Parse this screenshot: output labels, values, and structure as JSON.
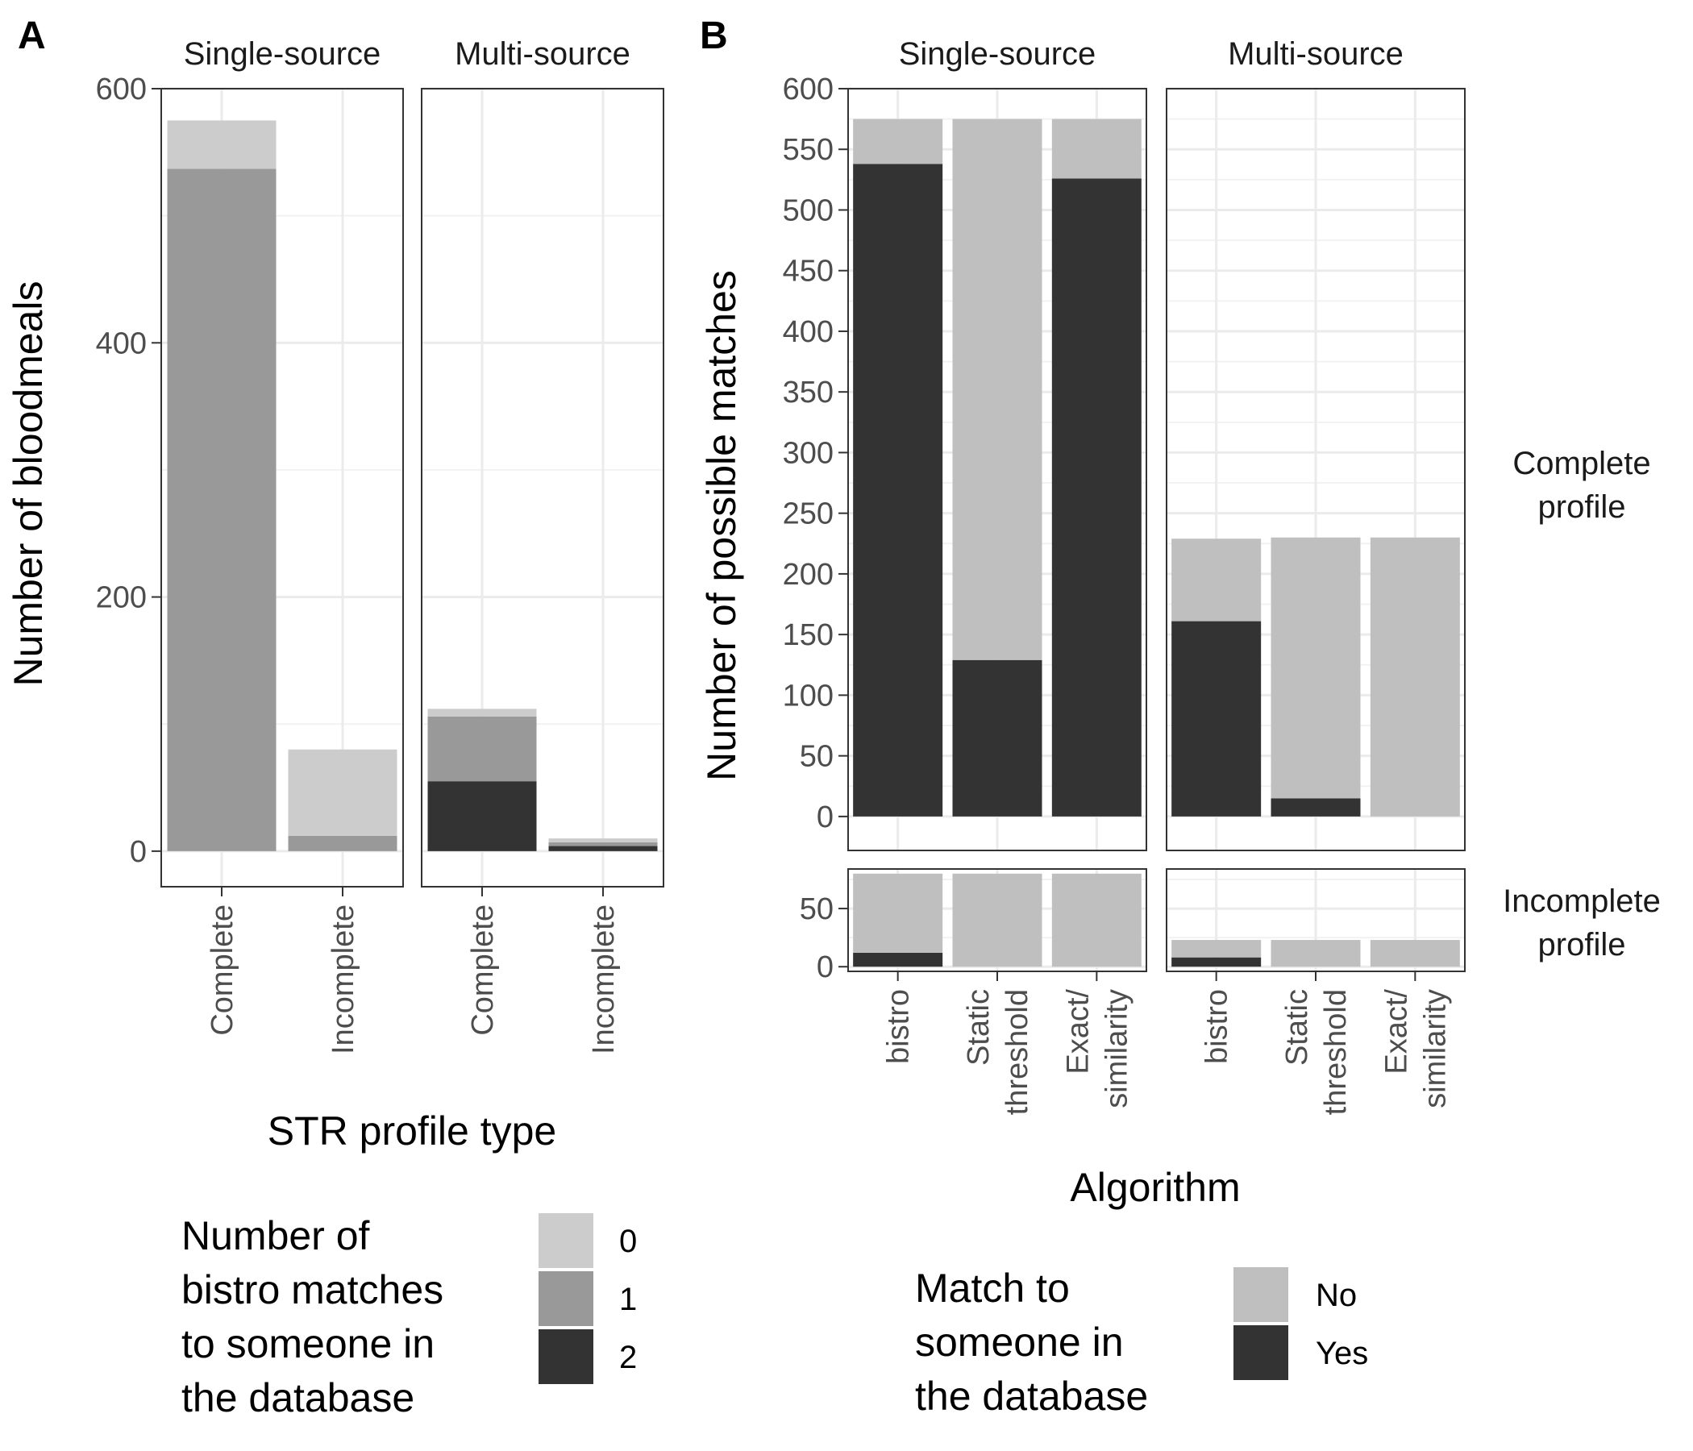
{
  "chart_data": [
    {
      "panel": "A",
      "type": "bar",
      "stacked": true,
      "facets": [
        "Single-source",
        "Multi-source"
      ],
      "categories": [
        "Complete",
        "Incomplete"
      ],
      "series": [
        {
          "name": "0",
          "color": "#cccccc",
          "values": {
            "Single-source": [
              38,
              68
            ],
            "Multi-source": [
              6,
              3
            ]
          }
        },
        {
          "name": "1",
          "color": "#999999",
          "values": {
            "Single-source": [
              537,
              12
            ],
            "Multi-source": [
              51,
              3
            ]
          }
        },
        {
          "name": "2",
          "color": "#333333",
          "values": {
            "Single-source": [
              0,
              0
            ],
            "Multi-source": [
              55,
              4
            ]
          }
        }
      ],
      "xlabel": "STR profile type",
      "ylabel": "Number of bloodmeals",
      "ylim": [
        -28,
        600
      ],
      "yticks": [
        0,
        200,
        400,
        600
      ],
      "grid": true,
      "legend": {
        "position": "bottom",
        "title_lines": [
          "Number of",
          "bistro matches",
          "to someone in",
          "the database"
        ],
        "entries": [
          "0",
          "1",
          "2"
        ]
      }
    },
    {
      "panel": "B",
      "type": "bar",
      "stacked": true,
      "facets": [
        "Single-source",
        "Multi-source"
      ],
      "rows": [
        "Complete profile",
        "Incomplete profile"
      ],
      "row_label_lines": [
        [
          "Complete",
          "profile"
        ],
        [
          "Incomplete",
          "profile"
        ]
      ],
      "categories": [
        "bistro",
        "Static threshold",
        "Exact/ similarity"
      ],
      "category_lines": [
        [
          "bistro"
        ],
        [
          "Static",
          "threshold"
        ],
        [
          "Exact/",
          "similarity"
        ]
      ],
      "series": [
        {
          "name": "No",
          "color": "#bfbfbf",
          "values": {
            "Complete profile": {
              "Single-source": [
                37,
                446,
                49
              ],
              "Multi-source": [
                68,
                215,
                230
              ]
            },
            "Incomplete profile": {
              "Single-source": [
                68,
                80,
                80
              ],
              "Multi-source": [
                15,
                23,
                23
              ]
            }
          }
        },
        {
          "name": "Yes",
          "color": "#333333",
          "values": {
            "Complete profile": {
              "Single-source": [
                538,
                129,
                526
              ],
              "Multi-source": [
                161,
                15,
                0
              ]
            },
            "Incomplete profile": {
              "Single-source": [
                12,
                0,
                0
              ],
              "Multi-source": [
                8,
                0,
                0
              ]
            }
          }
        }
      ],
      "xlabel": "Algorithm",
      "ylabel": "Number of possible matches",
      "ylim": {
        "Complete profile": [
          -28,
          600
        ],
        "Incomplete profile": [
          -4,
          84
        ]
      },
      "yticks": {
        "Complete profile": [
          0,
          50,
          100,
          150,
          200,
          250,
          300,
          350,
          400,
          450,
          500,
          550,
          600
        ],
        "Incomplete profile": [
          0,
          50
        ]
      },
      "grid": true,
      "legend": {
        "position": "bottom",
        "title_lines": [
          "Match to",
          "someone in",
          "the database"
        ],
        "entries": [
          "No",
          "Yes"
        ]
      }
    }
  ]
}
